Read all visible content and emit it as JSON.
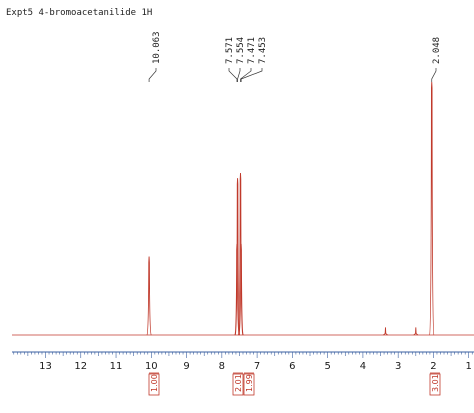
{
  "title": "Expt5 4-bromoacetanilide 1H",
  "colors": {
    "spectrum": "#c0392b",
    "axis": "#3a5fa0",
    "text": "#222222",
    "integral": "#c0392b"
  },
  "chart_data": {
    "type": "line",
    "title": "Expt5 4-bromoacetanilide 1H",
    "xlabel": "",
    "ylabel": "",
    "x_axis_reversed": true,
    "xlim": [
      13.95,
      0.85
    ],
    "x_ticks": [
      13,
      12,
      11,
      10,
      9,
      8,
      7,
      6,
      5,
      4,
      3,
      2,
      1
    ],
    "y_axis_shown": false,
    "grid": false,
    "peaks": [
      {
        "ppm": 10.063,
        "height": 0.31
      },
      {
        "ppm": 7.571,
        "height": 0.36
      },
      {
        "ppm": 7.554,
        "height": 0.62
      },
      {
        "ppm": 7.471,
        "height": 0.64
      },
      {
        "ppm": 7.453,
        "height": 0.36
      },
      {
        "ppm": 3.36,
        "height": 0.03
      },
      {
        "ppm": 2.5,
        "height": 0.03
      },
      {
        "ppm": 2.048,
        "height": 1.0
      }
    ],
    "peak_labels": [
      "10.063",
      "7.571",
      "7.554",
      "7.471",
      "7.453",
      "2.048"
    ],
    "integrals": [
      {
        "ppm": 10.063,
        "value": "1.00"
      },
      {
        "ppm": 7.56,
        "value": "2.01"
      },
      {
        "ppm": 7.46,
        "value": "1.99"
      },
      {
        "ppm": 2.048,
        "value": "3.01"
      }
    ]
  }
}
